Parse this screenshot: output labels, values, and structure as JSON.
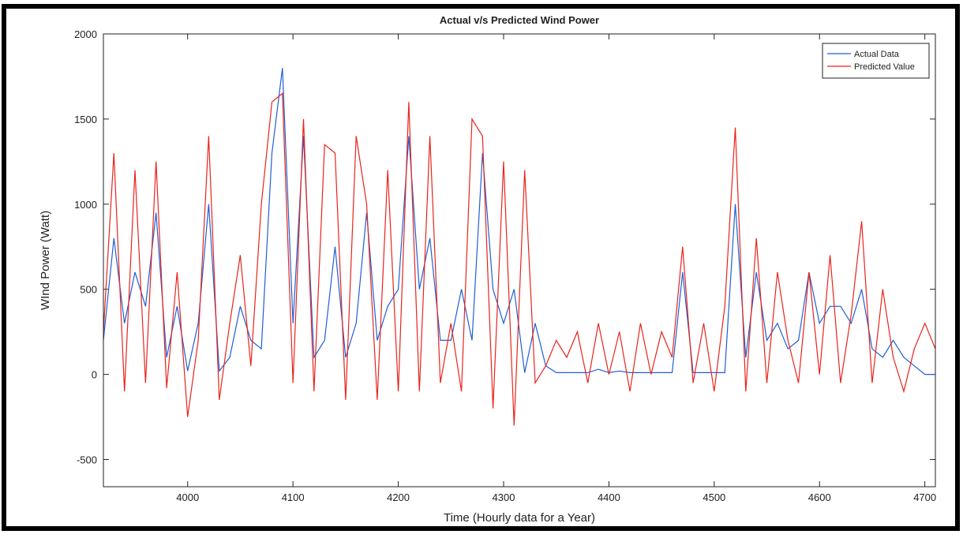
{
  "chart_data": {
    "type": "line",
    "title": "Actual v/s Predicted Wind Power",
    "x_label": "Time (Hourly data for a Year)",
    "y_label": "WInd Power (Watt)",
    "x": [
      3920,
      3930,
      3940,
      3950,
      3960,
      3970,
      3980,
      3990,
      4000,
      4010,
      4020,
      4030,
      4040,
      4050,
      4060,
      4070,
      4080,
      4090,
      4100,
      4110,
      4120,
      4130,
      4140,
      4150,
      4160,
      4170,
      4180,
      4190,
      4200,
      4210,
      4220,
      4230,
      4240,
      4250,
      4260,
      4270,
      4280,
      4290,
      4300,
      4310,
      4320,
      4330,
      4340,
      4350,
      4360,
      4370,
      4380,
      4390,
      4400,
      4410,
      4420,
      4430,
      4440,
      4450,
      4460,
      4470,
      4480,
      4490,
      4500,
      4510,
      4520,
      4530,
      4540,
      4550,
      4560,
      4570,
      4580,
      4590,
      4600,
      4610,
      4620,
      4630,
      4640,
      4650,
      4660,
      4670,
      4680,
      4690,
      4700,
      4710
    ],
    "series": [
      {
        "name": "Actual Data",
        "color": "#1f5fd6",
        "values": [
          200,
          800,
          300,
          600,
          400,
          950,
          100,
          400,
          20,
          300,
          1000,
          20,
          100,
          400,
          200,
          150,
          1300,
          1800,
          300,
          1400,
          100,
          200,
          750,
          100,
          300,
          950,
          200,
          400,
          500,
          1400,
          500,
          800,
          200,
          200,
          500,
          200,
          1300,
          500,
          300,
          500,
          10,
          300,
          50,
          10,
          10,
          10,
          10,
          30,
          10,
          20,
          10,
          10,
          10,
          10,
          10,
          600,
          10,
          10,
          10,
          10,
          1000,
          100,
          600,
          200,
          300,
          150,
          200,
          600,
          300,
          400,
          400,
          300,
          500,
          150,
          100,
          200,
          100,
          50,
          0,
          0
        ]
      },
      {
        "name": "Predicted Value",
        "color": "#e8241c",
        "values": [
          250,
          1300,
          -100,
          1200,
          -50,
          1250,
          -80,
          600,
          -250,
          200,
          1400,
          -150,
          300,
          700,
          50,
          1000,
          1600,
          1650,
          -50,
          1500,
          -100,
          1350,
          1300,
          -150,
          1400,
          1000,
          -150,
          1200,
          -100,
          1600,
          -100,
          1400,
          -50,
          300,
          -100,
          1500,
          1400,
          -200,
          1250,
          -300,
          1200,
          -50,
          50,
          200,
          100,
          250,
          -50,
          300,
          0,
          250,
          -100,
          300,
          0,
          250,
          100,
          750,
          -50,
          300,
          -100,
          400,
          1450,
          -100,
          800,
          -50,
          600,
          200,
          -50,
          600,
          0,
          700,
          -50,
          350,
          900,
          -50,
          500,
          100,
          -100,
          150,
          300,
          150
        ]
      }
    ],
    "xlim": [
      3920,
      4710
    ],
    "xticks": [
      4000,
      4100,
      4200,
      4300,
      4400,
      4500,
      4600,
      4700
    ],
    "ylim": [
      -660,
      2000
    ],
    "yticks": [
      -500,
      0,
      500,
      1000,
      1500,
      2000
    ],
    "grid": false,
    "legend": "upper right"
  }
}
